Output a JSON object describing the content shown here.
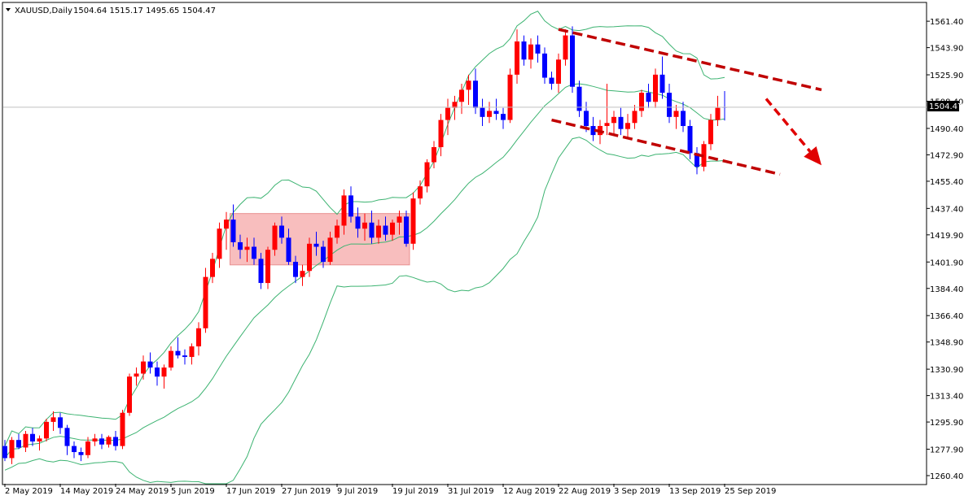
{
  "header": {
    "symbol_timeframe": "XAUUSD,Daily",
    "ohlc": "1504.64 1515.17 1495.65 1504.47"
  },
  "current_price_label": "1504.47",
  "chart_data": {
    "type": "candlestick",
    "symbol": "XAUUSD",
    "timeframe": "Daily",
    "ylim": [
      1260.4,
      1569.0
    ],
    "y_ticks": [
      1561.4,
      1543.9,
      1525.9,
      1508.4,
      1490.4,
      1472.9,
      1455.4,
      1437.4,
      1419.9,
      1401.9,
      1384.4,
      1366.4,
      1348.9,
      1330.9,
      1313.4,
      1295.9,
      1277.9,
      1260.4
    ],
    "x_tick_labels": [
      {
        "label": "2 May 2019",
        "index": 0
      },
      {
        "label": "14 May 2019",
        "index": 8
      },
      {
        "label": "24 May 2019",
        "index": 16
      },
      {
        "label": "5 Jun 2019",
        "index": 24
      },
      {
        "label": "17 Jun 2019",
        "index": 32
      },
      {
        "label": "27 Jun 2019",
        "index": 40
      },
      {
        "label": "9 Jul 2019",
        "index": 48
      },
      {
        "label": "19 Jul 2019",
        "index": 56
      },
      {
        "label": "31 Jul 2019",
        "index": 64
      },
      {
        "label": "12 Aug 2019",
        "index": 72
      },
      {
        "label": "22 Aug 2019",
        "index": 80
      },
      {
        "label": "3 Sep 2019",
        "index": 88
      },
      {
        "label": "13 Sep 2019",
        "index": 96
      },
      {
        "label": "25 Sep 2019",
        "index": 104
      }
    ],
    "current_price": 1504.47,
    "bullish_color": "#ff0000",
    "bearish_color": "#0000ff",
    "band_color": "#3cb371",
    "annotation_color": "#c00000",
    "candles": [
      [
        1280,
        1284,
        1270,
        1272
      ],
      [
        1272,
        1286,
        1268,
        1284
      ],
      [
        1284,
        1288,
        1278,
        1279
      ],
      [
        1279,
        1290,
        1276,
        1288
      ],
      [
        1288,
        1292,
        1280,
        1283
      ],
      [
        1283,
        1287,
        1277,
        1285
      ],
      [
        1285,
        1298,
        1283,
        1296
      ],
      [
        1296,
        1303,
        1290,
        1299
      ],
      [
        1299,
        1302,
        1288,
        1292
      ],
      [
        1292,
        1294,
        1274,
        1280
      ],
      [
        1280,
        1283,
        1272,
        1276
      ],
      [
        1276,
        1279,
        1270,
        1274
      ],
      [
        1274,
        1286,
        1272,
        1283
      ],
      [
        1283,
        1288,
        1280,
        1285
      ],
      [
        1285,
        1288,
        1278,
        1281
      ],
      [
        1281,
        1287,
        1279,
        1286
      ],
      [
        1286,
        1290,
        1277,
        1280
      ],
      [
        1280,
        1304,
        1278,
        1302
      ],
      [
        1302,
        1328,
        1300,
        1326
      ],
      [
        1326,
        1332,
        1320,
        1328
      ],
      [
        1328,
        1340,
        1324,
        1336
      ],
      [
        1336,
        1342,
        1328,
        1332
      ],
      [
        1332,
        1336,
        1320,
        1326
      ],
      [
        1326,
        1334,
        1318,
        1332
      ],
      [
        1332,
        1346,
        1330,
        1343
      ],
      [
        1343,
        1352,
        1338,
        1340
      ],
      [
        1340,
        1344,
        1334,
        1339
      ],
      [
        1339,
        1348,
        1334,
        1346
      ],
      [
        1346,
        1362,
        1340,
        1358
      ],
      [
        1358,
        1398,
        1355,
        1392
      ],
      [
        1392,
        1408,
        1388,
        1404
      ],
      [
        1404,
        1428,
        1398,
        1424
      ],
      [
        1424,
        1435,
        1410,
        1430
      ],
      [
        1430,
        1440,
        1412,
        1415
      ],
      [
        1415,
        1420,
        1404,
        1410
      ],
      [
        1410,
        1418,
        1402,
        1412
      ],
      [
        1412,
        1418,
        1400,
        1404
      ],
      [
        1404,
        1408,
        1384,
        1388
      ],
      [
        1388,
        1412,
        1384,
        1410
      ],
      [
        1410,
        1428,
        1406,
        1426
      ],
      [
        1426,
        1432,
        1414,
        1418
      ],
      [
        1418,
        1424,
        1400,
        1402
      ],
      [
        1402,
        1406,
        1388,
        1392
      ],
      [
        1392,
        1400,
        1386,
        1396
      ],
      [
        1396,
        1418,
        1392,
        1414
      ],
      [
        1414,
        1422,
        1406,
        1412
      ],
      [
        1412,
        1416,
        1398,
        1402
      ],
      [
        1402,
        1422,
        1400,
        1418
      ],
      [
        1418,
        1430,
        1414,
        1426
      ],
      [
        1426,
        1450,
        1420,
        1446
      ],
      [
        1446,
        1452,
        1428,
        1432
      ],
      [
        1432,
        1438,
        1418,
        1424
      ],
      [
        1424,
        1434,
        1416,
        1428
      ],
      [
        1428,
        1436,
        1414,
        1418
      ],
      [
        1418,
        1430,
        1414,
        1426
      ],
      [
        1426,
        1432,
        1416,
        1420
      ],
      [
        1420,
        1430,
        1416,
        1428
      ],
      [
        1428,
        1436,
        1420,
        1432
      ],
      [
        1432,
        1436,
        1412,
        1414
      ],
      [
        1414,
        1448,
        1410,
        1444
      ],
      [
        1444,
        1456,
        1440,
        1452
      ],
      [
        1452,
        1470,
        1448,
        1468
      ],
      [
        1468,
        1482,
        1464,
        1478
      ],
      [
        1478,
        1500,
        1472,
        1496
      ],
      [
        1496,
        1510,
        1486,
        1504
      ],
      [
        1504,
        1512,
        1496,
        1508
      ],
      [
        1508,
        1520,
        1500,
        1516
      ],
      [
        1516,
        1526,
        1506,
        1522
      ],
      [
        1522,
        1530,
        1500,
        1504
      ],
      [
        1504,
        1510,
        1492,
        1498
      ],
      [
        1498,
        1508,
        1494,
        1502
      ],
      [
        1502,
        1510,
        1496,
        1500
      ],
      [
        1500,
        1504,
        1490,
        1496
      ],
      [
        1496,
        1530,
        1494,
        1526
      ],
      [
        1526,
        1556,
        1520,
        1548
      ],
      [
        1548,
        1552,
        1532,
        1536
      ],
      [
        1536,
        1550,
        1530,
        1546
      ],
      [
        1546,
        1552,
        1534,
        1540
      ],
      [
        1540,
        1544,
        1520,
        1524
      ],
      [
        1524,
        1528,
        1516,
        1520
      ],
      [
        1520,
        1540,
        1514,
        1536
      ],
      [
        1536,
        1556,
        1532,
        1552
      ],
      [
        1552,
        1558,
        1514,
        1518
      ],
      [
        1518,
        1522,
        1498,
        1502
      ],
      [
        1502,
        1508,
        1488,
        1492
      ],
      [
        1492,
        1498,
        1482,
        1486
      ],
      [
        1486,
        1496,
        1480,
        1492
      ],
      [
        1492,
        1520,
        1486,
        1494
      ],
      [
        1494,
        1502,
        1486,
        1498
      ],
      [
        1498,
        1504,
        1486,
        1490
      ],
      [
        1490,
        1500,
        1484,
        1494
      ],
      [
        1494,
        1506,
        1490,
        1502
      ],
      [
        1502,
        1516,
        1498,
        1514
      ],
      [
        1514,
        1520,
        1504,
        1508
      ],
      [
        1508,
        1530,
        1504,
        1526
      ],
      [
        1526,
        1538,
        1510,
        1514
      ],
      [
        1514,
        1520,
        1494,
        1498
      ],
      [
        1498,
        1506,
        1490,
        1502
      ],
      [
        1502,
        1508,
        1488,
        1492
      ],
      [
        1492,
        1496,
        1470,
        1474
      ],
      [
        1474,
        1478,
        1460,
        1465
      ],
      [
        1465,
        1482,
        1462,
        1480
      ],
      [
        1480,
        1500,
        1476,
        1496
      ],
      [
        1496,
        1512,
        1492,
        1504
      ],
      [
        1504.64,
        1515.17,
        1495.65,
        1504.47
      ]
    ]
  },
  "annotations": {
    "consolidation_box": {
      "from_index": 33,
      "to_index": 58,
      "price_low": 1400,
      "price_high": 1434
    },
    "channel_upper": {
      "from": [
        80,
        1556
      ],
      "to": [
        118,
        1516
      ]
    },
    "channel_lower": {
      "from": [
        79,
        1496
      ],
      "to": [
        112,
        1460
      ]
    },
    "arrow": {
      "from": [
        110,
        1510
      ],
      "to": [
        118,
        1466
      ]
    }
  }
}
